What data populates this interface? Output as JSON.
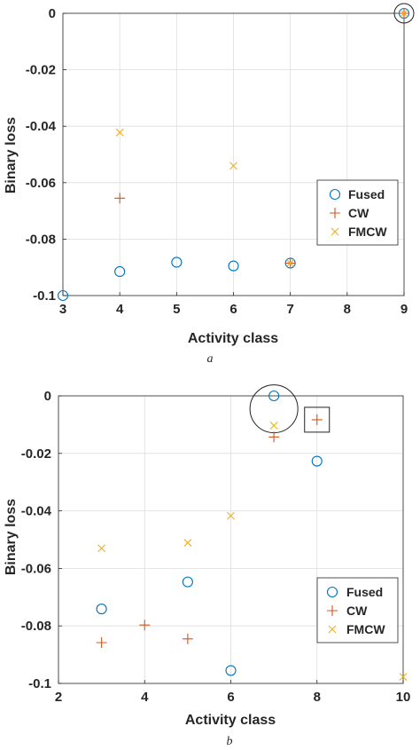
{
  "chart_data": [
    {
      "type": "scatter",
      "caption": "a",
      "xlabel": "Activity class",
      "ylabel": "Binary loss",
      "xlim": [
        3,
        9
      ],
      "ylim": [
        -0.1,
        0
      ],
      "xticks": [
        "3",
        "4",
        "5",
        "6",
        "7",
        "8",
        "9"
      ],
      "yticks": [
        "0",
        "-0.02",
        "-0.04",
        "-0.06",
        "-0.08",
        "-0.1"
      ],
      "grid": true,
      "legend_position": "lower-right",
      "series": [
        {
          "name": "Fused",
          "marker": "circle",
          "color": "#0072BD",
          "x": [
            3,
            4,
            5,
            6,
            7,
            9
          ],
          "y": [
            -0.1,
            -0.0915,
            -0.0882,
            -0.0895,
            -0.0885,
            0
          ]
        },
        {
          "name": "CW",
          "marker": "plus",
          "color": "#D95319",
          "x": [
            4,
            7,
            9
          ],
          "y": [
            -0.0655,
            -0.0885,
            0
          ]
        },
        {
          "name": "FMCW",
          "marker": "x",
          "color": "#EDB120",
          "x": [
            4,
            6,
            7,
            9
          ],
          "y": [
            -0.0422,
            -0.054,
            -0.0885,
            0
          ]
        }
      ],
      "annotations": [
        {
          "shape": "circle",
          "x": 9,
          "y": 0
        }
      ]
    },
    {
      "type": "scatter",
      "caption": "b",
      "xlabel": "Activity class",
      "ylabel": "Binary loss",
      "xlim": [
        2,
        10
      ],
      "ylim": [
        -0.1,
        0
      ],
      "xticks": [
        "2",
        "4",
        "6",
        "8",
        "10"
      ],
      "yticks": [
        "0",
        "-0.02",
        "-0.04",
        "-0.06",
        "-0.08",
        "-0.1"
      ],
      "grid": true,
      "legend_position": "lower-right",
      "series": [
        {
          "name": "Fused",
          "marker": "circle",
          "color": "#0072BD",
          "x": [
            3,
            5,
            6,
            7,
            8
          ],
          "y": [
            -0.0741,
            -0.0647,
            -0.0955,
            0,
            -0.0227
          ]
        },
        {
          "name": "CW",
          "marker": "plus",
          "color": "#D95319",
          "x": [
            3,
            4,
            5,
            7,
            8
          ],
          "y": [
            -0.0858,
            -0.0797,
            -0.0845,
            -0.0143,
            -0.0083
          ]
        },
        {
          "name": "FMCW",
          "marker": "x",
          "color": "#EDB120",
          "x": [
            3,
            5,
            6,
            7,
            10
          ],
          "y": [
            -0.053,
            -0.0511,
            -0.0417,
            -0.0103,
            -0.0977
          ]
        }
      ],
      "annotations": [
        {
          "shape": "circle",
          "x": 7,
          "y": -0.0045
        },
        {
          "shape": "square",
          "x": 8,
          "y": -0.0083
        }
      ]
    }
  ]
}
